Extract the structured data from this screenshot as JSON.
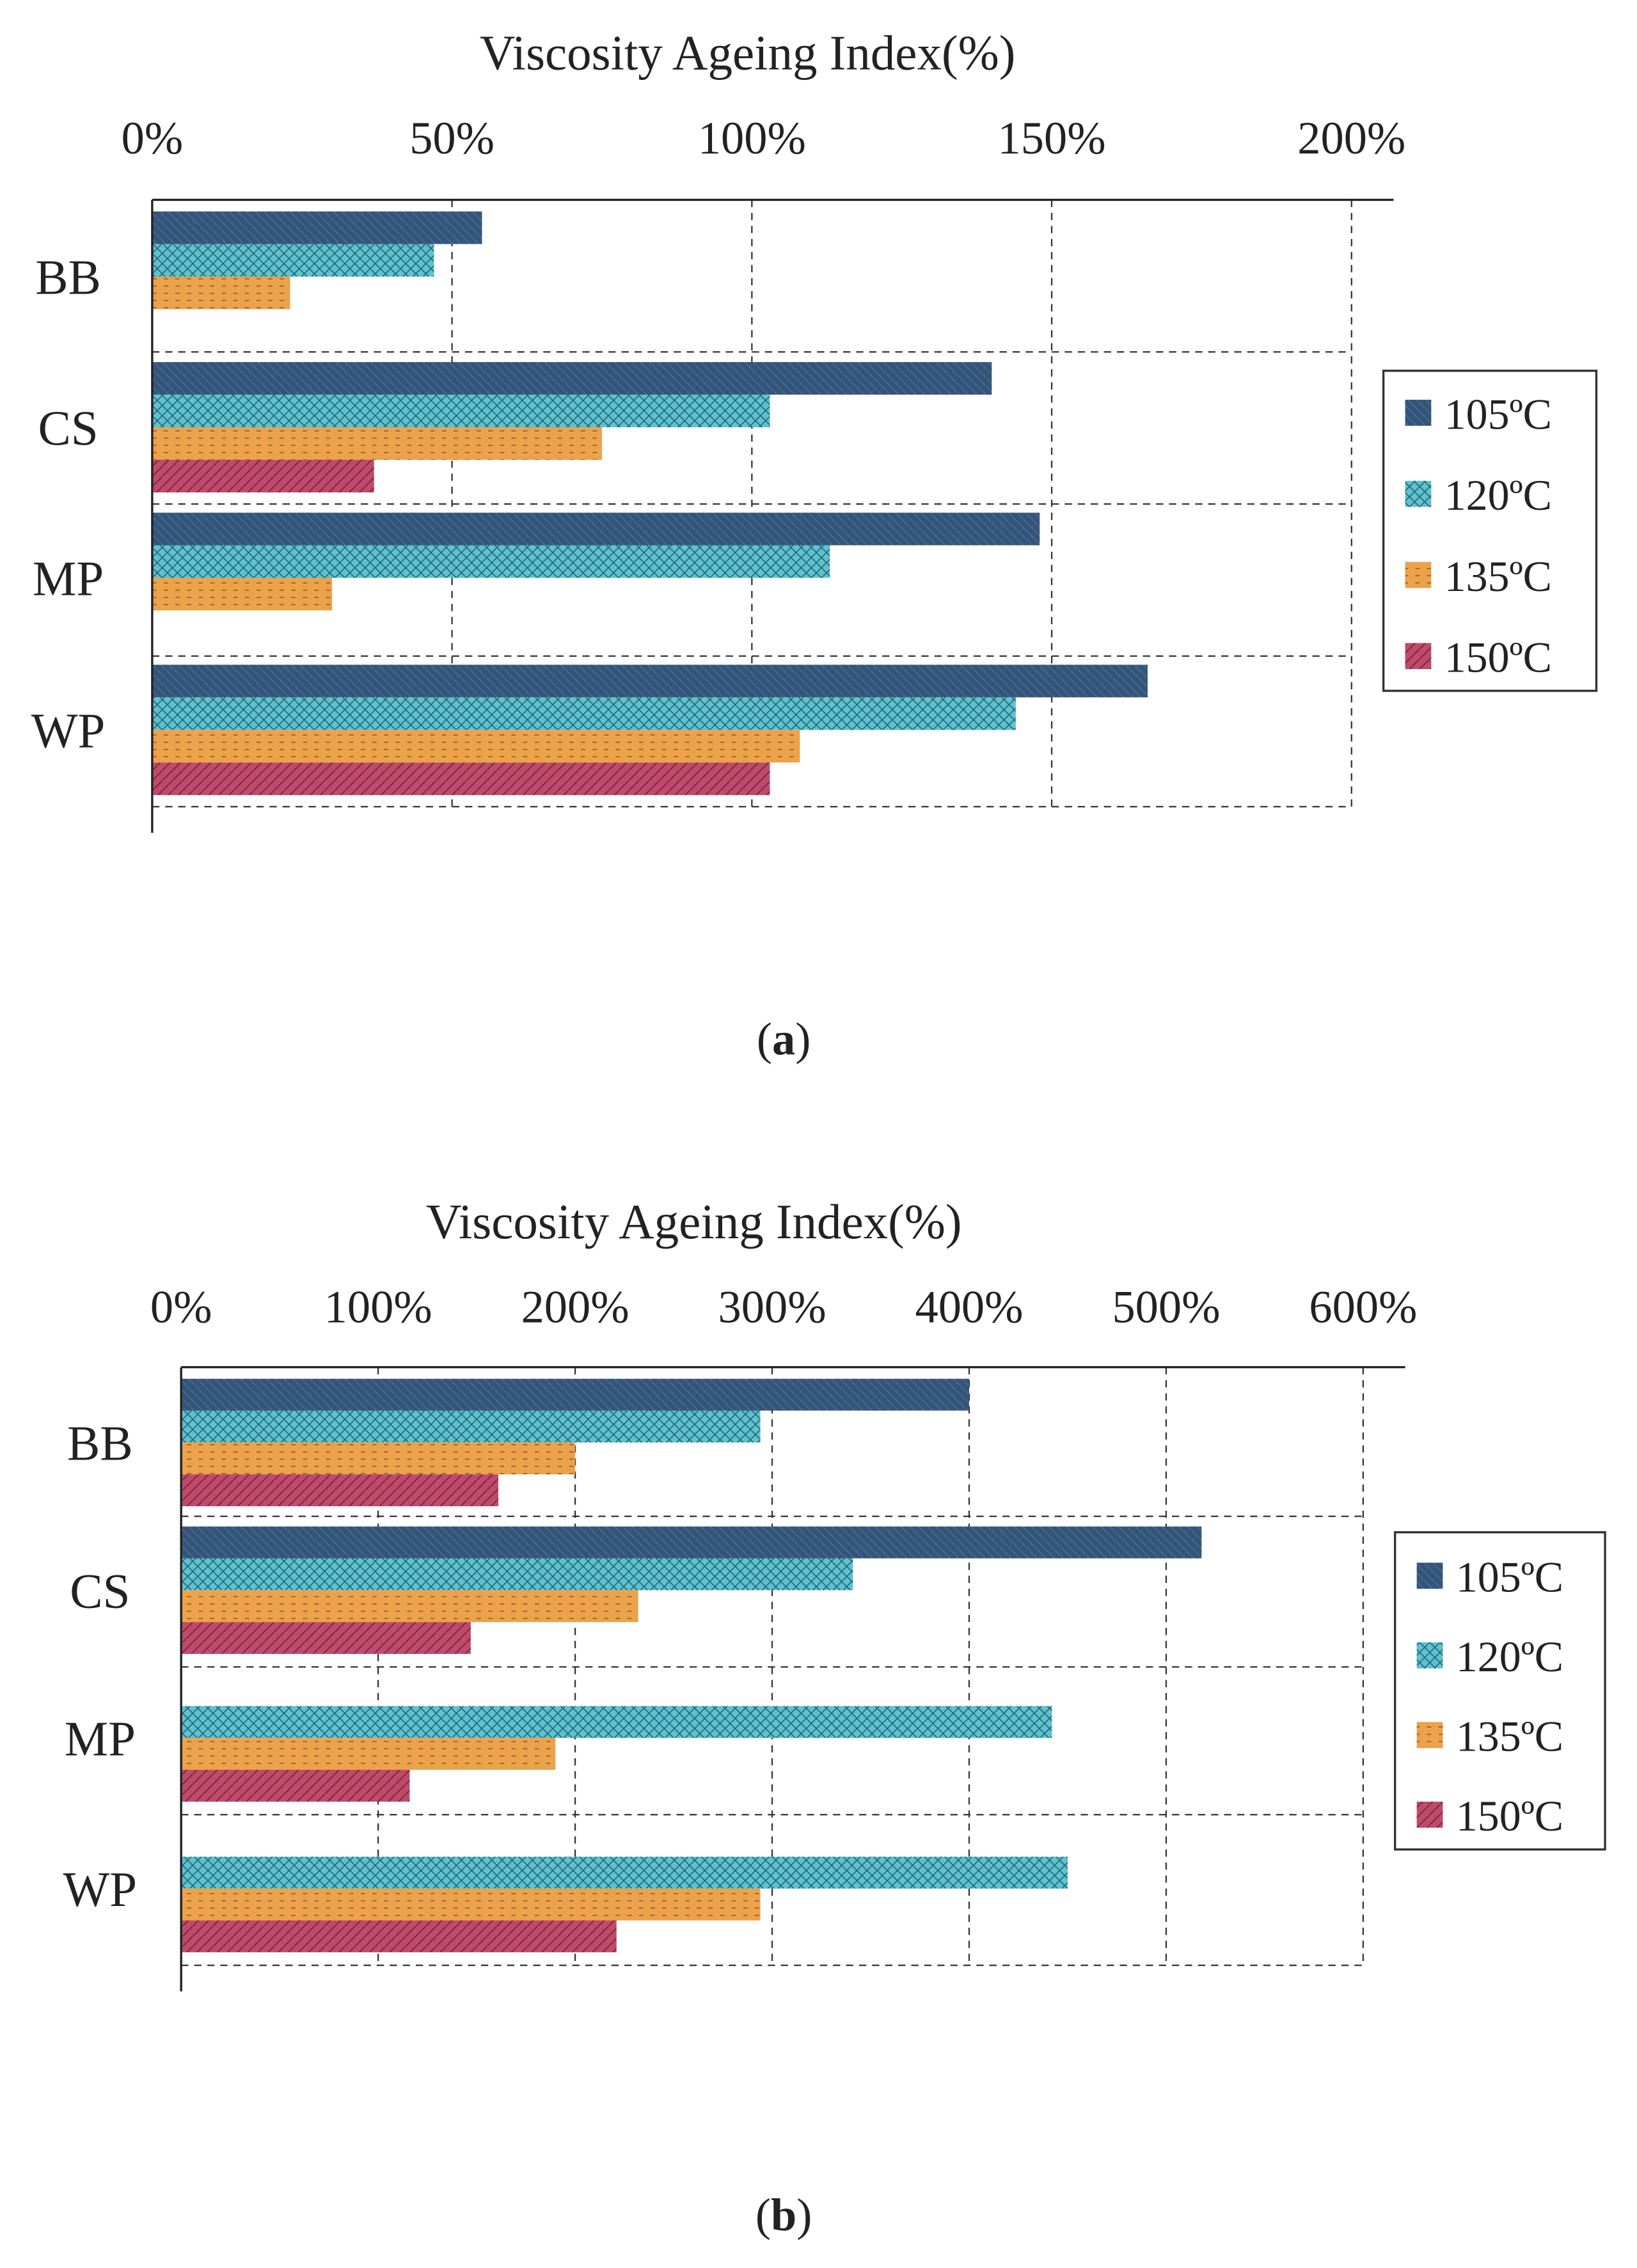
{
  "colors": {
    "105": "#34557a",
    "120": "#5bc3d0",
    "135": "#eca24a",
    "150": "#c04a6a"
  },
  "legend": [
    "105ºC",
    "120ºC",
    "135ºC",
    "150ºC"
  ],
  "captions": {
    "a": "a",
    "b": "b"
  },
  "chart_data": [
    {
      "type": "bar",
      "orientation": "horizontal",
      "panel": "a",
      "title": "Viscosity Ageing Index(%)",
      "xlim": [
        0,
        200
      ],
      "ticks": [
        "0%",
        "50%",
        "100%",
        "150%",
        "200%"
      ],
      "tick_values": [
        0,
        50,
        100,
        150,
        200
      ],
      "categories": [
        "BB",
        "CS",
        "MP",
        "WP"
      ],
      "legend_position": "right",
      "grid": true,
      "series": [
        {
          "name": "105ºC",
          "values": [
            55,
            140,
            148,
            166
          ]
        },
        {
          "name": "120ºC",
          "values": [
            47,
            103,
            113,
            144
          ]
        },
        {
          "name": "135ºC",
          "values": [
            23,
            75,
            30,
            108
          ]
        },
        {
          "name": "150ºC",
          "values": [
            null,
            37,
            null,
            103
          ]
        }
      ]
    },
    {
      "type": "bar",
      "orientation": "horizontal",
      "panel": "b",
      "title": "Viscosity Ageing Index(%)",
      "xlim": [
        0,
        600
      ],
      "ticks": [
        "0%",
        "100%",
        "200%",
        "300%",
        "400%",
        "500%",
        "600%"
      ],
      "tick_values": [
        0,
        100,
        200,
        300,
        400,
        500,
        600
      ],
      "categories": [
        "BB",
        "CS",
        "MP",
        "WP"
      ],
      "legend_position": "right",
      "grid": true,
      "series": [
        {
          "name": "105ºC",
          "values": [
            400,
            518,
            null,
            null
          ]
        },
        {
          "name": "120ºC",
          "values": [
            294,
            341,
            442,
            450
          ]
        },
        {
          "name": "135ºC",
          "values": [
            200,
            232,
            190,
            294
          ]
        },
        {
          "name": "150ºC",
          "values": [
            161,
            147,
            116,
            221
          ]
        }
      ]
    }
  ]
}
